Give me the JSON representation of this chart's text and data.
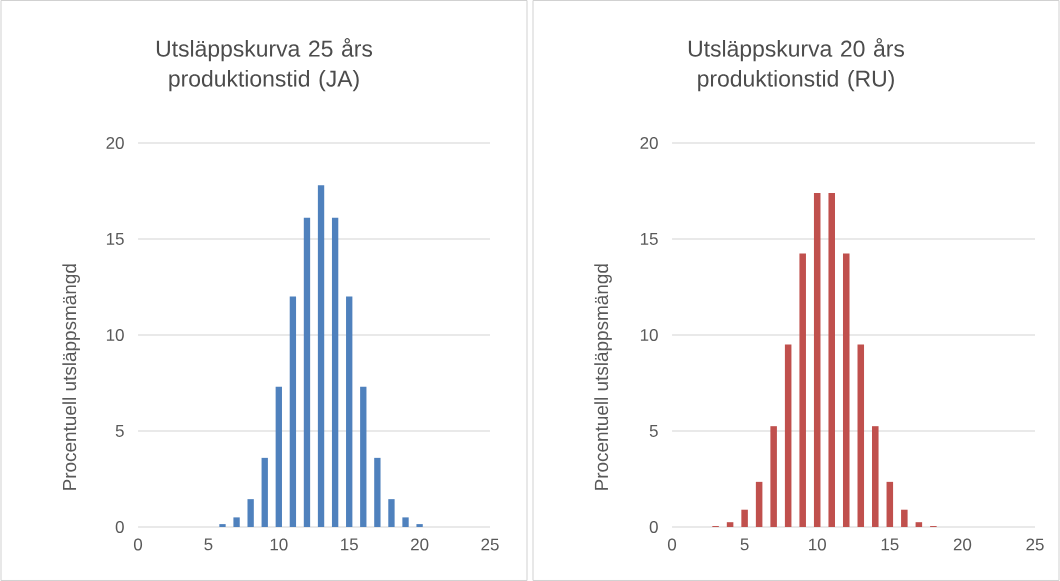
{
  "chart_data": [
    {
      "type": "bar",
      "title": "Utsläppskurva 25 års produktionstid (JA)",
      "ylabel": "Procentuell utsläppsmängd",
      "x": [
        6,
        7,
        8,
        9,
        10,
        11,
        12,
        13,
        14,
        15,
        16,
        17,
        18,
        19,
        20
      ],
      "values": [
        0.15,
        0.5,
        1.45,
        3.6,
        7.3,
        12,
        16.1,
        17.8,
        16.1,
        12,
        7.3,
        3.6,
        1.45,
        0.5,
        0.15
      ],
      "color": "#4f81bd",
      "xlim": [
        0,
        25
      ],
      "ylim": [
        0,
        20
      ],
      "xticks": [
        0,
        5,
        10,
        15,
        20,
        25
      ],
      "yticks": [
        0,
        5,
        10,
        15,
        20
      ],
      "grid": "y"
    },
    {
      "type": "bar",
      "title": "Utsläppskurva 20 års produktionstid (RU)",
      "ylabel": "Procentuell utsläppsmängd",
      "x": [
        3,
        4,
        5,
        6,
        7,
        8,
        9,
        10,
        11,
        12,
        13,
        14,
        15,
        16,
        17,
        18
      ],
      "values": [
        0.05,
        0.25,
        0.9,
        2.35,
        5.25,
        9.5,
        14.25,
        17.4,
        17.4,
        14.25,
        9.5,
        5.25,
        2.35,
        0.9,
        0.25,
        0.05
      ],
      "color": "#c0504d",
      "xlim": [
        0,
        25
      ],
      "ylim": [
        0,
        20
      ],
      "xticks": [
        0,
        5,
        10,
        15,
        20,
        25
      ],
      "yticks": [
        0,
        5,
        10,
        15,
        20
      ],
      "grid": "y"
    }
  ]
}
